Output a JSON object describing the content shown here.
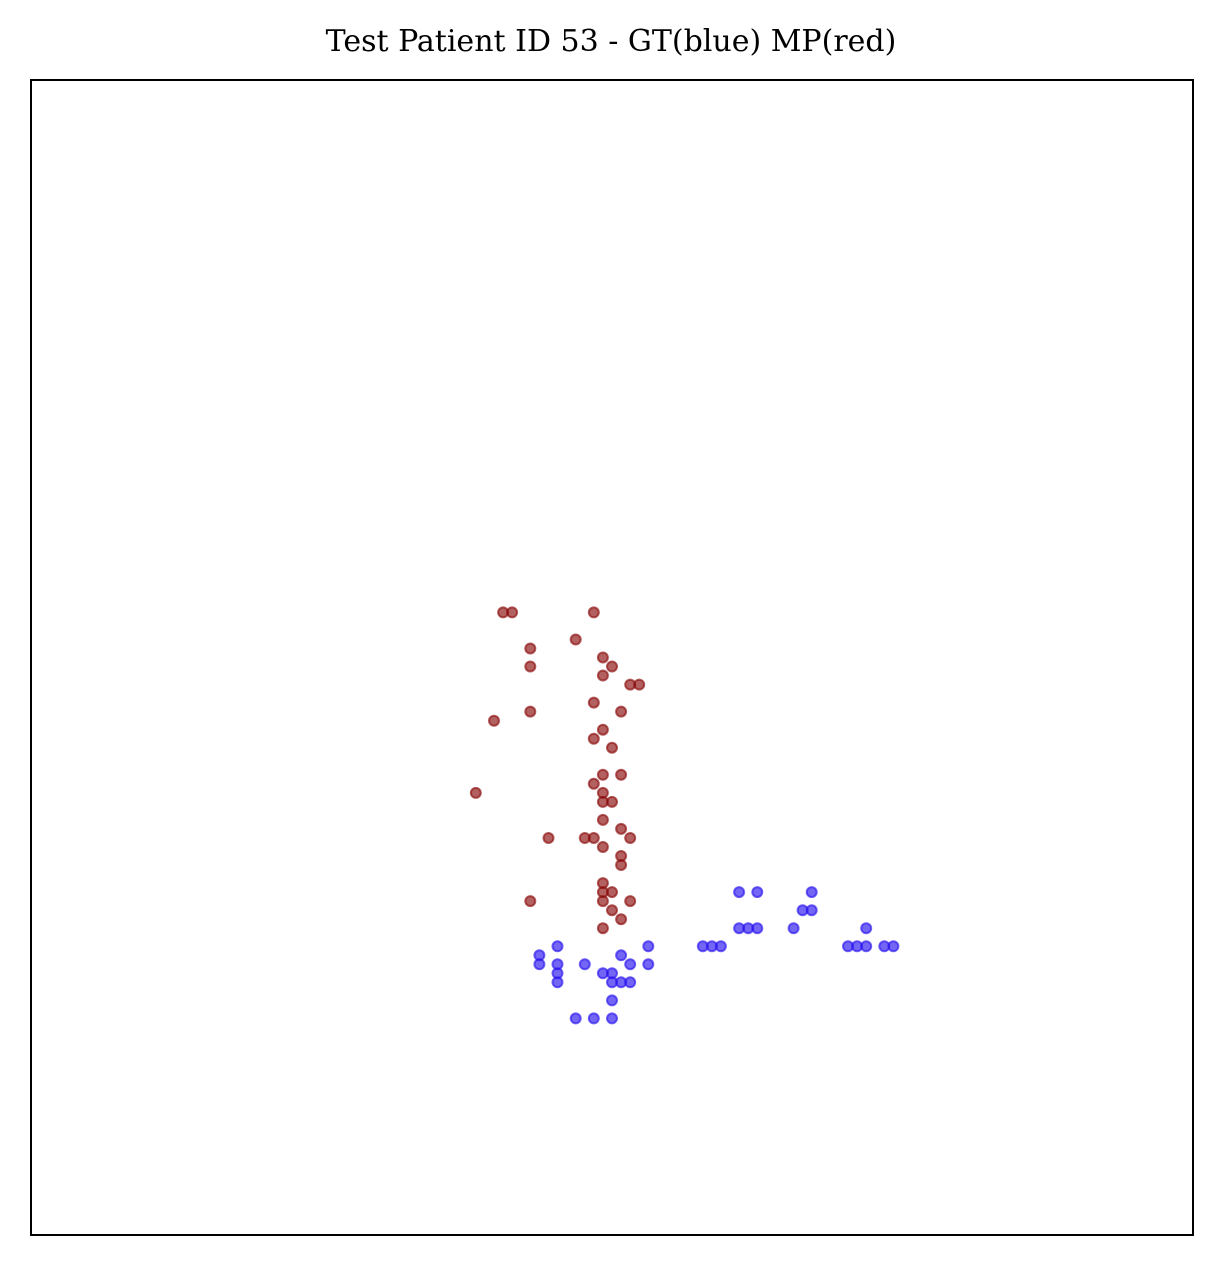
{
  "chart_data": {
    "type": "scatter",
    "title": "Test Patient ID 53 - GT(blue) MP(red)",
    "xlabel": "",
    "ylabel": "",
    "xlim": [
      0,
      128
    ],
    "ylim": [
      128,
      0
    ],
    "grid": false,
    "axis_ticks": false,
    "colors": {
      "blue": "#2a14ee",
      "red": "#8b0a0a",
      "box": "#008000"
    },
    "box": {
      "x0": 62.25,
      "y0": 19.25,
      "x1": 87.75,
      "y1": 44.75
    },
    "series": [
      {
        "color_key": "blue",
        "points": [
          [
            60,
            24
          ],
          [
            62,
            24
          ],
          [
            64,
            24
          ],
          [
            64,
            26
          ],
          [
            58,
            28
          ],
          [
            64,
            28
          ],
          [
            65,
            28
          ],
          [
            66,
            28
          ],
          [
            58,
            29
          ],
          [
            63,
            29
          ],
          [
            64,
            29
          ],
          [
            56,
            30
          ],
          [
            58,
            30
          ],
          [
            61,
            30
          ],
          [
            66,
            30
          ],
          [
            68,
            30
          ],
          [
            56,
            31
          ],
          [
            65,
            31
          ],
          [
            58,
            32
          ],
          [
            68,
            32
          ],
          [
            74,
            32
          ],
          [
            75,
            32
          ],
          [
            76,
            32
          ],
          [
            90,
            32
          ],
          [
            91,
            32
          ],
          [
            92,
            32
          ],
          [
            94,
            32
          ],
          [
            95,
            32
          ],
          [
            78,
            34
          ],
          [
            79,
            34
          ],
          [
            80,
            34
          ],
          [
            84,
            34
          ],
          [
            92,
            34
          ],
          [
            85,
            36
          ],
          [
            86,
            36
          ],
          [
            78,
            38
          ],
          [
            80,
            38
          ],
          [
            86,
            38
          ]
        ]
      },
      {
        "color_key": "red",
        "points": [
          [
            63,
            34
          ],
          [
            65,
            35
          ],
          [
            64,
            36
          ],
          [
            55,
            37
          ],
          [
            63,
            37
          ],
          [
            66,
            37
          ],
          [
            63,
            38
          ],
          [
            64,
            38
          ],
          [
            63,
            39
          ],
          [
            65,
            41
          ],
          [
            65,
            42
          ],
          [
            63,
            43
          ],
          [
            57,
            44
          ],
          [
            61,
            44
          ],
          [
            62,
            44
          ],
          [
            66,
            44
          ],
          [
            65,
            45
          ],
          [
            63,
            46
          ],
          [
            63,
            48
          ],
          [
            64,
            48
          ],
          [
            49,
            49
          ],
          [
            63,
            49
          ],
          [
            62,
            50
          ],
          [
            63,
            51
          ],
          [
            65,
            51
          ],
          [
            64,
            54
          ],
          [
            62,
            55
          ],
          [
            51,
            57
          ],
          [
            63,
            56
          ],
          [
            55,
            58
          ],
          [
            65,
            58
          ],
          [
            62,
            59
          ],
          [
            66,
            61
          ],
          [
            67,
            61
          ],
          [
            63,
            62
          ],
          [
            55,
            63
          ],
          [
            64,
            63
          ],
          [
            63,
            64
          ],
          [
            55,
            65
          ],
          [
            60,
            66
          ],
          [
            52,
            69
          ],
          [
            53,
            69
          ],
          [
            62,
            69
          ]
        ]
      }
    ]
  }
}
